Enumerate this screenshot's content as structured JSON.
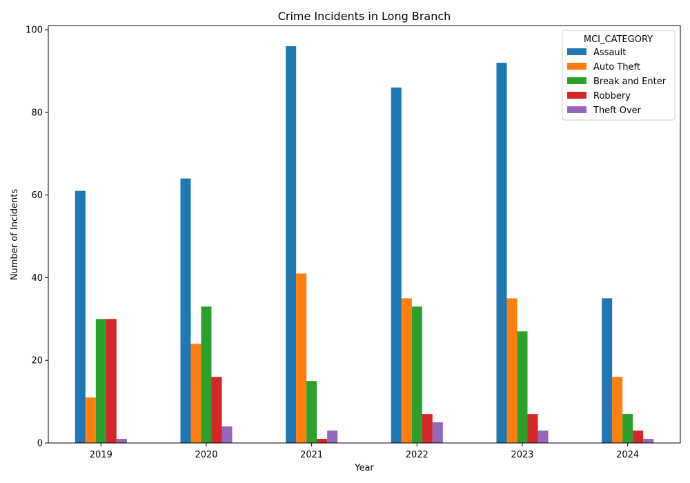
{
  "chart_data": {
    "type": "bar",
    "title": "Crime Incidents in Long Branch",
    "xlabel": "Year",
    "ylabel": "Number of Incidents",
    "categories": [
      "2019",
      "2020",
      "2021",
      "2022",
      "2023",
      "2024"
    ],
    "ylim": [
      0,
      101
    ],
    "yticks": [
      0,
      20,
      40,
      60,
      80,
      100
    ],
    "grid": false,
    "legend": {
      "title": "MCI_CATEGORY",
      "placement": "top-right"
    },
    "series": [
      {
        "name": "Assault",
        "color": "#1f77b4",
        "values": [
          61,
          64,
          96,
          86,
          92,
          35
        ]
      },
      {
        "name": "Auto Theft",
        "color": "#ff7f0e",
        "values": [
          11,
          24,
          41,
          35,
          35,
          16
        ]
      },
      {
        "name": "Break and Enter",
        "color": "#2ca02c",
        "values": [
          30,
          33,
          15,
          33,
          27,
          7
        ]
      },
      {
        "name": "Robbery",
        "color": "#d62728",
        "values": [
          30,
          16,
          1,
          7,
          7,
          3
        ]
      },
      {
        "name": "Theft Over",
        "color": "#9467bd",
        "values": [
          1,
          4,
          3,
          5,
          3,
          1
        ]
      }
    ]
  }
}
